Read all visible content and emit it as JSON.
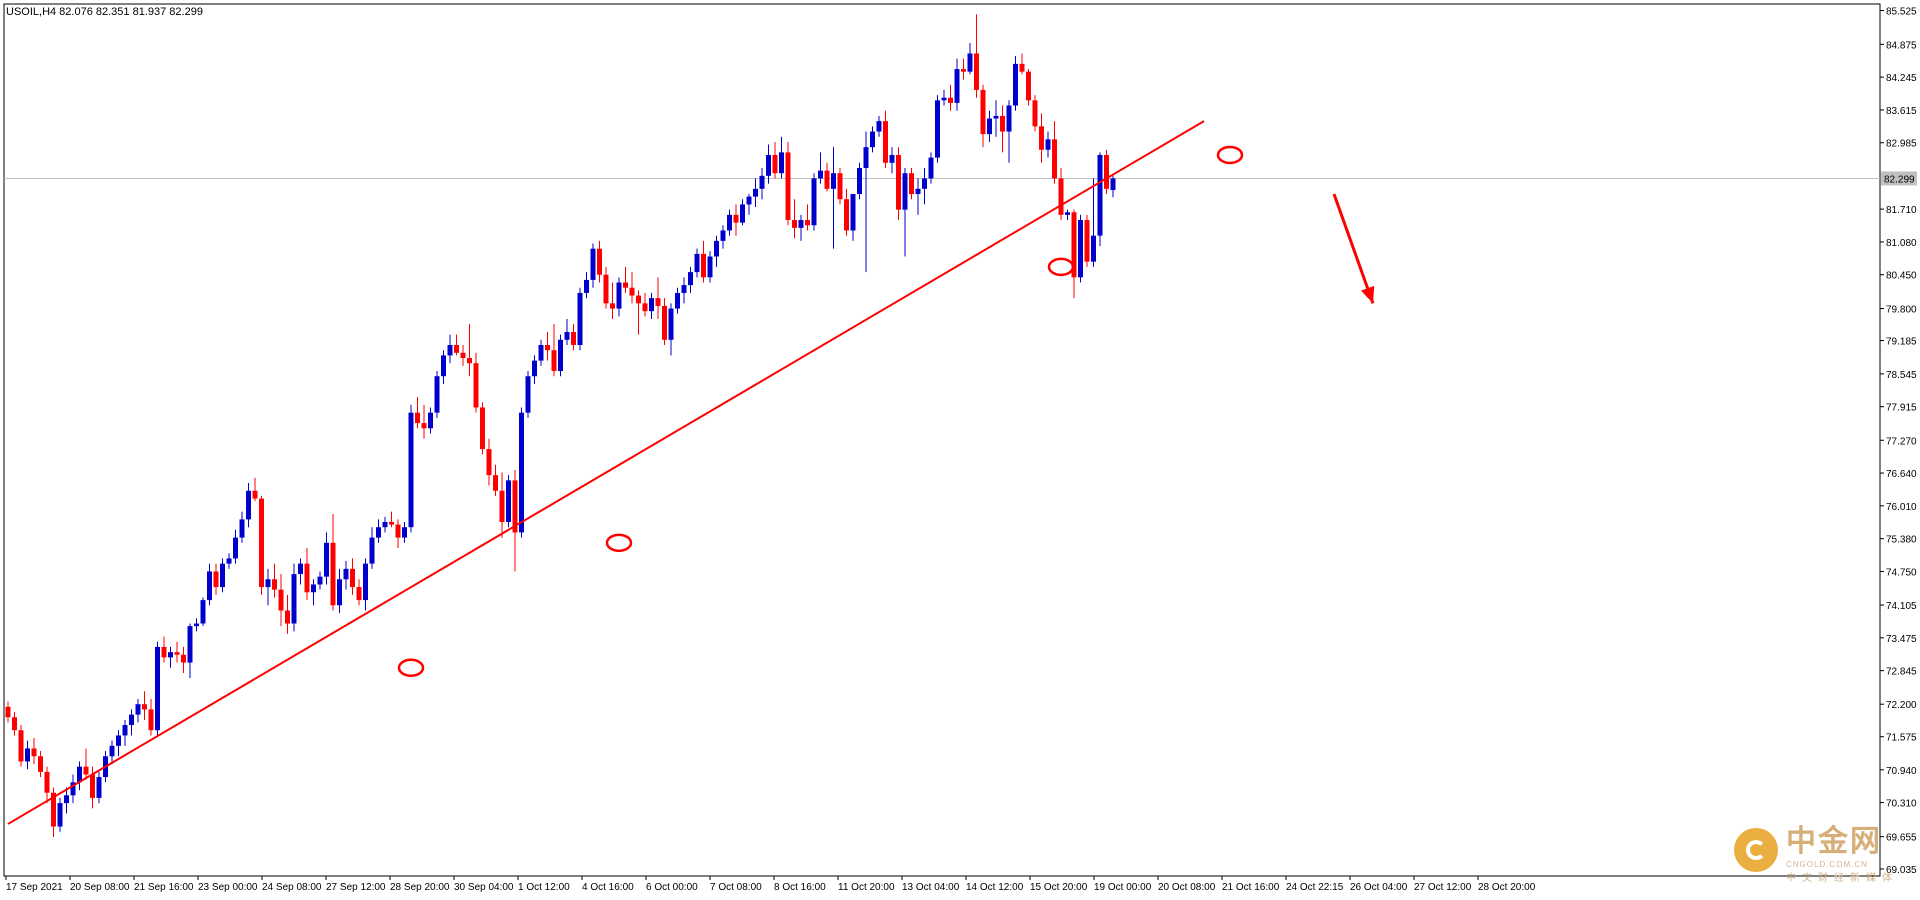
{
  "header": {
    "symbol_info": "USOIL,H4 82.076 82.351 81.937 82.299"
  },
  "watermark": {
    "cn_text": "中金网",
    "en_text": "CNGOLD.COM.CN",
    "sub_text": "中文财经新媒体"
  },
  "colors": {
    "bull": "#0000cc",
    "bear": "#ff0000",
    "trend": "#ff0000",
    "grid": "#c0c0c0",
    "axis": "#000000"
  },
  "chart_data": {
    "type": "candlestick",
    "symbol": "USOIL",
    "timeframe": "H4",
    "current_price": "82.299",
    "y_ticks": [
      "85.525",
      "84.875",
      "84.245",
      "83.615",
      "82.985",
      "81.710",
      "81.080",
      "80.450",
      "79.800",
      "79.185",
      "78.545",
      "77.915",
      "77.270",
      "76.640",
      "76.010",
      "75.380",
      "74.750",
      "74.105",
      "73.475",
      "72.845",
      "72.200",
      "71.575",
      "70.940",
      "70.310",
      "69.655",
      "69.035"
    ],
    "x_ticks": [
      "17 Sep 2021",
      "20 Sep 08:00",
      "21 Sep 16:00",
      "23 Sep 00:00",
      "24 Sep 08:00",
      "27 Sep 12:00",
      "28 Sep 20:00",
      "30 Sep 04:00",
      "1 Oct 12:00",
      "4 Oct 16:00",
      "6 Oct 00:00",
      "7 Oct 08:00",
      "8 Oct 16:00",
      "11 Oct 20:00",
      "13 Oct 04:00",
      "14 Oct 12:00",
      "15 Oct 20:00",
      "19 Oct 00:00",
      "20 Oct 08:00",
      "21 Oct 16:00",
      "24 Oct 22:15",
      "26 Oct 04:00",
      "27 Oct 12:00",
      "28 Oct 20:00"
    ],
    "ylim": [
      68.9,
      85.65
    ],
    "candles": [
      [
        72.15,
        72.25,
        71.85,
        71.95
      ],
      [
        71.95,
        72.05,
        71.6,
        71.7
      ],
      [
        71.7,
        71.8,
        71.0,
        71.1
      ],
      [
        71.1,
        71.5,
        70.95,
        71.35
      ],
      [
        71.35,
        71.55,
        71.05,
        71.2
      ],
      [
        71.2,
        71.3,
        70.8,
        70.9
      ],
      [
        70.9,
        71.0,
        70.3,
        70.5
      ],
      [
        70.5,
        70.6,
        69.65,
        69.85
      ],
      [
        69.85,
        70.4,
        69.75,
        70.3
      ],
      [
        70.3,
        70.6,
        70.1,
        70.45
      ],
      [
        70.45,
        70.85,
        70.3,
        70.7
      ],
      [
        70.7,
        71.1,
        70.55,
        71.0
      ],
      [
        71.0,
        71.35,
        70.75,
        70.85
      ],
      [
        70.85,
        71.0,
        70.2,
        70.4
      ],
      [
        70.4,
        70.9,
        70.3,
        70.8
      ],
      [
        70.8,
        71.3,
        70.7,
        71.2
      ],
      [
        71.2,
        71.5,
        71.05,
        71.4
      ],
      [
        71.4,
        71.7,
        71.2,
        71.6
      ],
      [
        71.6,
        71.9,
        71.4,
        71.8
      ],
      [
        71.8,
        72.1,
        71.6,
        72.0
      ],
      [
        72.0,
        72.3,
        71.85,
        72.2
      ],
      [
        72.2,
        72.45,
        71.9,
        72.1
      ],
      [
        72.1,
        72.3,
        71.6,
        71.7
      ],
      [
        71.7,
        73.4,
        71.6,
        73.3
      ],
      [
        73.3,
        73.5,
        73.0,
        73.1
      ],
      [
        73.1,
        73.3,
        72.9,
        73.2
      ],
      [
        73.2,
        73.4,
        73.0,
        73.15
      ],
      [
        73.15,
        73.3,
        72.8,
        73.0
      ],
      [
        73.0,
        73.75,
        72.7,
        73.7
      ],
      [
        73.7,
        73.85,
        73.6,
        73.75
      ],
      [
        73.75,
        74.25,
        73.7,
        74.2
      ],
      [
        74.2,
        74.9,
        74.1,
        74.75
      ],
      [
        74.75,
        74.9,
        74.3,
        74.45
      ],
      [
        74.45,
        75.0,
        74.35,
        74.9
      ],
      [
        74.9,
        75.1,
        74.8,
        75.0
      ],
      [
        75.0,
        75.55,
        74.9,
        75.4
      ],
      [
        75.4,
        75.9,
        75.3,
        75.75
      ],
      [
        75.75,
        76.45,
        75.6,
        76.3
      ],
      [
        76.3,
        76.55,
        76.1,
        76.15
      ],
      [
        76.15,
        76.2,
        74.3,
        74.45
      ],
      [
        74.45,
        74.8,
        74.1,
        74.6
      ],
      [
        74.6,
        74.9,
        74.25,
        74.4
      ],
      [
        74.4,
        74.7,
        73.7,
        74.0
      ],
      [
        74.0,
        74.3,
        73.55,
        73.75
      ],
      [
        73.75,
        74.9,
        73.6,
        74.7
      ],
      [
        74.7,
        75.0,
        74.5,
        74.9
      ],
      [
        74.9,
        75.2,
        74.2,
        74.35
      ],
      [
        74.35,
        74.6,
        74.1,
        74.5
      ],
      [
        74.5,
        74.75,
        74.4,
        74.65
      ],
      [
        74.65,
        75.5,
        74.5,
        75.3
      ],
      [
        75.3,
        75.85,
        74.0,
        74.1
      ],
      [
        74.1,
        74.8,
        73.95,
        74.6
      ],
      [
        74.6,
        74.95,
        74.4,
        74.8
      ],
      [
        74.8,
        75.0,
        74.3,
        74.45
      ],
      [
        74.45,
        74.6,
        74.1,
        74.2
      ],
      [
        74.2,
        75.0,
        74.0,
        74.9
      ],
      [
        74.9,
        75.6,
        74.8,
        75.4
      ],
      [
        75.4,
        75.75,
        75.3,
        75.6
      ],
      [
        75.6,
        75.8,
        75.5,
        75.7
      ],
      [
        75.7,
        75.9,
        75.6,
        75.65
      ],
      [
        75.65,
        75.75,
        75.2,
        75.4
      ],
      [
        75.4,
        75.7,
        75.3,
        75.6
      ],
      [
        75.6,
        77.95,
        75.5,
        77.8
      ],
      [
        77.8,
        78.1,
        77.5,
        77.6
      ],
      [
        77.6,
        77.95,
        77.3,
        77.5
      ],
      [
        77.5,
        77.9,
        77.4,
        77.8
      ],
      [
        77.8,
        78.6,
        77.7,
        78.5
      ],
      [
        78.5,
        79.0,
        78.35,
        78.9
      ],
      [
        78.9,
        79.3,
        78.75,
        79.1
      ],
      [
        79.1,
        79.3,
        78.9,
        78.95
      ],
      [
        78.95,
        79.1,
        78.7,
        78.85
      ],
      [
        78.85,
        79.5,
        78.5,
        78.75
      ],
      [
        78.75,
        78.95,
        77.8,
        77.9
      ],
      [
        77.9,
        78.0,
        77.0,
        77.1
      ],
      [
        77.1,
        77.3,
        76.4,
        76.6
      ],
      [
        76.6,
        76.8,
        76.2,
        76.3
      ],
      [
        76.3,
        76.65,
        75.4,
        75.7
      ],
      [
        75.7,
        76.6,
        75.6,
        76.5
      ],
      [
        76.5,
        76.7,
        74.75,
        75.5
      ],
      [
        75.5,
        77.9,
        75.4,
        77.8
      ],
      [
        77.8,
        78.6,
        77.7,
        78.5
      ],
      [
        78.5,
        78.9,
        78.35,
        78.8
      ],
      [
        78.8,
        79.2,
        78.7,
        79.1
      ],
      [
        79.1,
        79.35,
        78.8,
        79.0
      ],
      [
        79.0,
        79.5,
        78.5,
        78.6
      ],
      [
        78.6,
        79.3,
        78.5,
        79.2
      ],
      [
        79.2,
        79.6,
        79.1,
        79.35
      ],
      [
        79.35,
        79.5,
        79.0,
        79.1
      ],
      [
        79.1,
        80.2,
        79.0,
        80.1
      ],
      [
        80.1,
        80.5,
        80.0,
        80.35
      ],
      [
        80.35,
        81.05,
        80.2,
        80.95
      ],
      [
        80.95,
        81.1,
        80.3,
        80.45
      ],
      [
        80.45,
        80.6,
        79.8,
        79.9
      ],
      [
        79.9,
        80.3,
        79.6,
        79.8
      ],
      [
        79.8,
        80.4,
        79.65,
        80.3
      ],
      [
        80.3,
        80.6,
        80.1,
        80.2
      ],
      [
        80.2,
        80.5,
        79.9,
        80.05
      ],
      [
        80.05,
        80.15,
        79.3,
        79.9
      ],
      [
        79.9,
        80.1,
        79.65,
        79.75
      ],
      [
        79.75,
        80.1,
        79.6,
        80.0
      ],
      [
        80.0,
        80.4,
        79.6,
        79.85
      ],
      [
        79.85,
        80.0,
        79.1,
        79.2
      ],
      [
        79.2,
        79.9,
        78.9,
        79.8
      ],
      [
        79.8,
        80.2,
        79.7,
        80.1
      ],
      [
        80.1,
        80.4,
        79.9,
        80.25
      ],
      [
        80.25,
        80.6,
        80.1,
        80.5
      ],
      [
        80.5,
        80.95,
        80.4,
        80.85
      ],
      [
        80.85,
        81.1,
        80.3,
        80.4
      ],
      [
        80.4,
        80.9,
        80.3,
        80.8
      ],
      [
        80.8,
        81.2,
        80.6,
        81.1
      ],
      [
        81.1,
        81.4,
        80.95,
        81.3
      ],
      [
        81.3,
        81.7,
        81.2,
        81.6
      ],
      [
        81.6,
        81.8,
        81.2,
        81.45
      ],
      [
        81.45,
        81.9,
        81.4,
        81.8
      ],
      [
        81.8,
        82.0,
        81.6,
        81.95
      ],
      [
        81.95,
        82.3,
        81.75,
        82.1
      ],
      [
        82.1,
        82.5,
        81.9,
        82.35
      ],
      [
        82.35,
        82.95,
        82.2,
        82.75
      ],
      [
        82.75,
        83.0,
        82.3,
        82.4
      ],
      [
        82.4,
        83.1,
        82.3,
        82.8
      ],
      [
        82.8,
        83.0,
        81.4,
        81.5
      ],
      [
        81.5,
        81.9,
        81.15,
        81.35
      ],
      [
        81.35,
        81.6,
        81.1,
        81.5
      ],
      [
        81.5,
        81.8,
        81.3,
        81.4
      ],
      [
        81.4,
        82.4,
        81.3,
        82.3
      ],
      [
        82.3,
        82.8,
        82.2,
        82.45
      ],
      [
        82.45,
        82.6,
        82.05,
        82.1
      ],
      [
        82.1,
        82.9,
        80.95,
        82.4
      ],
      [
        82.4,
        82.5,
        81.8,
        81.9
      ],
      [
        81.9,
        82.1,
        81.2,
        81.3
      ],
      [
        81.3,
        82.0,
        81.1,
        82.0
      ],
      [
        82.0,
        82.6,
        81.9,
        82.5
      ],
      [
        82.5,
        83.2,
        80.5,
        82.9
      ],
      [
        82.9,
        83.3,
        82.8,
        83.2
      ],
      [
        83.2,
        83.5,
        83.1,
        83.4
      ],
      [
        83.4,
        83.6,
        82.5,
        82.6
      ],
      [
        82.6,
        82.9,
        82.4,
        82.75
      ],
      [
        82.75,
        82.9,
        81.5,
        81.7
      ],
      [
        81.7,
        82.5,
        80.8,
        82.4
      ],
      [
        82.4,
        82.5,
        81.9,
        82.0
      ],
      [
        82.0,
        82.3,
        81.6,
        82.1
      ],
      [
        82.1,
        82.5,
        81.8,
        82.3
      ],
      [
        82.3,
        82.8,
        82.2,
        82.7
      ],
      [
        82.7,
        83.9,
        82.6,
        83.8
      ],
      [
        83.8,
        84.0,
        83.7,
        83.85
      ],
      [
        83.85,
        84.1,
        83.6,
        83.75
      ],
      [
        83.75,
        84.6,
        83.6,
        84.4
      ],
      [
        84.4,
        84.6,
        84.2,
        84.35
      ],
      [
        84.35,
        84.9,
        84.3,
        84.7
      ],
      [
        84.7,
        85.45,
        83.85,
        84.0
      ],
      [
        84.0,
        84.1,
        82.9,
        83.15
      ],
      [
        83.15,
        83.6,
        83.0,
        83.45
      ],
      [
        83.45,
        83.8,
        83.1,
        83.5
      ],
      [
        83.5,
        83.7,
        82.8,
        83.2
      ],
      [
        83.2,
        83.8,
        82.6,
        83.7
      ],
      [
        83.7,
        84.65,
        83.6,
        84.5
      ],
      [
        84.5,
        84.7,
        84.3,
        84.35
      ],
      [
        84.35,
        84.4,
        83.7,
        83.8
      ],
      [
        83.8,
        83.9,
        83.2,
        83.3
      ],
      [
        83.3,
        83.55,
        82.6,
        82.85
      ],
      [
        82.85,
        83.2,
        82.7,
        83.05
      ],
      [
        83.05,
        83.4,
        82.2,
        82.3
      ],
      [
        82.3,
        82.5,
        81.5,
        81.6
      ],
      [
        81.6,
        81.7,
        81.5,
        81.65
      ],
      [
        81.65,
        81.7,
        80.0,
        80.4
      ],
      [
        80.4,
        81.6,
        80.3,
        81.5
      ],
      [
        81.5,
        81.6,
        80.6,
        80.7
      ],
      [
        80.7,
        82.3,
        80.6,
        81.2
      ],
      [
        81.2,
        82.8,
        81.0,
        82.75
      ],
      [
        82.75,
        82.85,
        82.0,
        82.1
      ],
      [
        82.076,
        82.351,
        81.937,
        82.299
      ]
    ],
    "trendline": {
      "from": [
        0,
        69.9
      ],
      "to": [
        184,
        83.4
      ]
    },
    "touch_points": [
      [
        62,
        72.9
      ],
      [
        94,
        75.3
      ],
      [
        162,
        80.6
      ],
      [
        188,
        82.75
      ]
    ],
    "arrow": {
      "from": [
        204,
        82.0
      ],
      "to": [
        210,
        79.9
      ]
    }
  }
}
